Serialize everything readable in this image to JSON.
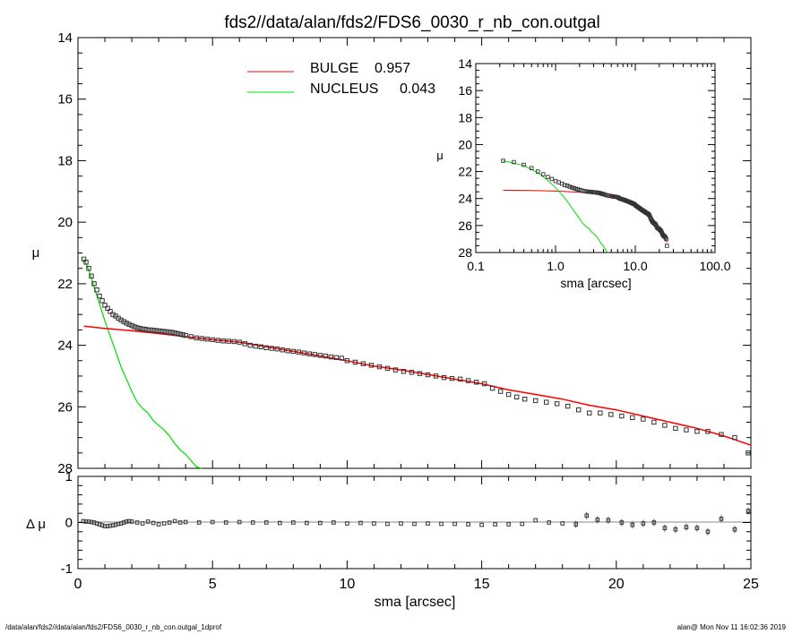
{
  "title": "fds2//data/alan/fds2/FDS6_0030_r_nb_con.outgal",
  "footer_left": "/data/alan/fds2//data/alan/fds2/FDS6_0030_r_nb_con.outgal_1dprof",
  "footer_right": "alan@  Mon Nov 11 16:02:36 2019",
  "legend": [
    {
      "label": "BULGE",
      "value": "0.957",
      "color": "#ff0000"
    },
    {
      "label": "NUCLEUS",
      "value": "0.043",
      "color": "#00dd00"
    }
  ],
  "chart_data": [
    {
      "id": "main",
      "type": "line",
      "xlabel": "",
      "ylabel": "μ",
      "xlim": [
        0,
        25
      ],
      "ylim": [
        28,
        14
      ],
      "xticks": [
        0,
        5,
        10,
        15,
        20,
        25
      ],
      "yticks": [
        14,
        16,
        18,
        20,
        22,
        24,
        26,
        28
      ],
      "series": [
        {
          "name": "data",
          "marker": "square",
          "x": [
            0.22,
            0.3,
            0.4,
            0.5,
            0.6,
            0.7,
            0.8,
            0.9,
            1.0,
            1.1,
            1.2,
            1.3,
            1.4,
            1.5,
            1.6,
            1.7,
            1.8,
            1.9,
            2.0,
            2.1,
            2.2,
            2.3,
            2.4,
            2.5,
            2.6,
            2.7,
            2.8,
            2.9,
            3.0,
            3.1,
            3.2,
            3.3,
            3.4,
            3.5,
            3.6,
            3.7,
            3.8,
            3.9,
            4.0,
            4.2,
            4.4,
            4.6,
            4.8,
            5.0,
            5.2,
            5.4,
            5.6,
            5.8,
            6.0,
            6.2,
            6.4,
            6.6,
            6.8,
            7.0,
            7.2,
            7.4,
            7.6,
            7.8,
            8.0,
            8.2,
            8.4,
            8.6,
            8.8,
            9.0,
            9.2,
            9.4,
            9.6,
            9.8,
            10.0,
            10.3,
            10.6,
            10.9,
            11.2,
            11.5,
            11.8,
            12.1,
            12.4,
            12.7,
            13.0,
            13.3,
            13.6,
            13.9,
            14.2,
            14.5,
            14.8,
            15.1,
            15.4,
            15.7,
            16.0,
            16.3,
            16.6,
            17.0,
            17.4,
            17.8,
            18.2,
            18.6,
            19.0,
            19.4,
            19.8,
            20.2,
            20.6,
            21.0,
            21.4,
            21.8,
            22.2,
            22.6,
            23.0,
            23.4,
            23.9,
            24.4,
            24.9
          ],
          "y": [
            21.2,
            21.3,
            21.5,
            21.75,
            22.0,
            22.2,
            22.4,
            22.55,
            22.7,
            22.8,
            22.9,
            23.0,
            23.05,
            23.12,
            23.18,
            23.23,
            23.28,
            23.32,
            23.36,
            23.4,
            23.43,
            23.45,
            23.47,
            23.48,
            23.5,
            23.5,
            23.51,
            23.52,
            23.53,
            23.54,
            23.55,
            23.56,
            23.57,
            23.58,
            23.6,
            23.62,
            23.64,
            23.66,
            23.68,
            23.72,
            23.76,
            23.78,
            23.8,
            23.82,
            23.84,
            23.86,
            23.87,
            23.88,
            23.9,
            23.95,
            24.0,
            24.03,
            24.05,
            24.08,
            24.1,
            24.12,
            24.15,
            24.18,
            24.2,
            24.22,
            24.25,
            24.28,
            24.3,
            24.33,
            24.35,
            24.38,
            24.4,
            24.42,
            24.5,
            24.55,
            24.6,
            24.65,
            24.7,
            24.75,
            24.8,
            24.85,
            24.88,
            24.92,
            24.96,
            25.0,
            25.05,
            25.08,
            25.1,
            25.15,
            25.2,
            25.25,
            25.4,
            25.5,
            25.6,
            25.68,
            25.75,
            25.8,
            25.85,
            25.9,
            25.98,
            26.1,
            26.2,
            26.2,
            26.25,
            26.3,
            26.35,
            26.4,
            26.5,
            26.6,
            26.7,
            26.75,
            26.8,
            26.8,
            26.9,
            27.0,
            27.5
          ]
        },
        {
          "name": "BULGE",
          "color": "#ff0000",
          "x": [
            0.22,
            1,
            2,
            3,
            4,
            5,
            6,
            7,
            8,
            9,
            10,
            11,
            12,
            13,
            14,
            15,
            16,
            17,
            18,
            19,
            20,
            21,
            22,
            23,
            24,
            25
          ],
          "y": [
            23.38,
            23.45,
            23.53,
            23.62,
            23.72,
            23.82,
            23.9,
            24.05,
            24.2,
            24.35,
            24.5,
            24.68,
            24.8,
            24.95,
            25.1,
            25.25,
            25.45,
            25.6,
            25.75,
            25.95,
            26.1,
            26.3,
            26.5,
            26.7,
            26.95,
            27.25
          ]
        },
        {
          "name": "NUCLEUS",
          "color": "#00dd00",
          "x": [
            0.22,
            0.4,
            0.6,
            0.8,
            1.0,
            1.2,
            1.4,
            1.6,
            1.8,
            2.0,
            2.2,
            2.4,
            2.6,
            2.8,
            3.0,
            3.2,
            3.4,
            3.6,
            3.8,
            4.0,
            4.2,
            4.4,
            4.6
          ],
          "y": [
            21.2,
            21.55,
            22.1,
            22.65,
            23.2,
            23.7,
            24.2,
            24.7,
            25.1,
            25.5,
            25.85,
            26.05,
            26.2,
            26.45,
            26.6,
            26.75,
            26.95,
            27.2,
            27.4,
            27.55,
            27.75,
            27.95,
            28.0
          ]
        }
      ]
    },
    {
      "id": "residual",
      "type": "scatter",
      "xlabel": "sma [arcsec]",
      "ylabel": "Δ μ",
      "xlim": [
        0,
        25
      ],
      "ylim": [
        -1,
        1
      ],
      "xticks": [
        0,
        5,
        10,
        15,
        20,
        25
      ],
      "yticks": [
        -1,
        0,
        1
      ],
      "series": [
        {
          "name": "residuals",
          "marker": "square",
          "x": [
            0.2,
            0.3,
            0.4,
            0.5,
            0.6,
            0.7,
            0.8,
            0.9,
            1.0,
            1.1,
            1.2,
            1.3,
            1.4,
            1.5,
            1.6,
            1.7,
            1.8,
            1.9,
            2.0,
            2.2,
            2.4,
            2.6,
            2.8,
            3.0,
            3.2,
            3.4,
            3.6,
            3.8,
            4.0,
            4.5,
            5,
            5.5,
            6,
            6.5,
            7,
            7.5,
            8,
            8.5,
            9,
            9.5,
            10,
            10.5,
            11,
            11.5,
            12,
            12.5,
            13,
            13.5,
            14,
            14.5,
            15,
            15.5,
            16,
            16.5,
            17,
            17.5,
            18,
            18.5,
            18.9,
            19.3,
            19.7,
            20.2,
            20.6,
            21.0,
            21.4,
            21.8,
            22.2,
            22.6,
            23.0,
            23.4,
            23.9,
            24.4,
            24.9
          ],
          "y": [
            0.03,
            0.02,
            0.02,
            0.01,
            0.0,
            -0.02,
            -0.04,
            -0.06,
            -0.08,
            -0.08,
            -0.07,
            -0.06,
            -0.05,
            -0.03,
            -0.02,
            0.0,
            0.02,
            0.03,
            0.02,
            0.0,
            -0.02,
            0.02,
            -0.01,
            -0.04,
            -0.02,
            0.0,
            0.03,
            0.0,
            0.01,
            0.0,
            0.01,
            0.0,
            0.01,
            0.0,
            0.0,
            -0.01,
            0.0,
            -0.01,
            -0.01,
            0.0,
            -0.02,
            -0.01,
            -0.02,
            -0.03,
            -0.02,
            -0.03,
            -0.02,
            -0.03,
            -0.03,
            -0.04,
            -0.05,
            -0.04,
            -0.04,
            -0.03,
            0.05,
            0.0,
            -0.02,
            -0.04,
            0.15,
            0.06,
            0.05,
            0.0,
            -0.05,
            -0.02,
            0.0,
            -0.12,
            -0.15,
            -0.1,
            -0.12,
            -0.2,
            0.08,
            -0.15,
            0.25
          ]
        }
      ]
    },
    {
      "id": "inset",
      "type": "line",
      "xlabel": "sma [arcsec]",
      "ylabel": "μ",
      "xscale": "log",
      "xlim": [
        0.1,
        100
      ],
      "ylim": [
        28,
        14
      ],
      "xticks": [
        0.1,
        1.0,
        10.0,
        100.0
      ],
      "xticklabels": [
        "0.1",
        "1.0",
        "10.0",
        "100.0"
      ],
      "yticks": [
        14,
        16,
        18,
        20,
        22,
        24,
        26,
        28
      ]
    }
  ]
}
